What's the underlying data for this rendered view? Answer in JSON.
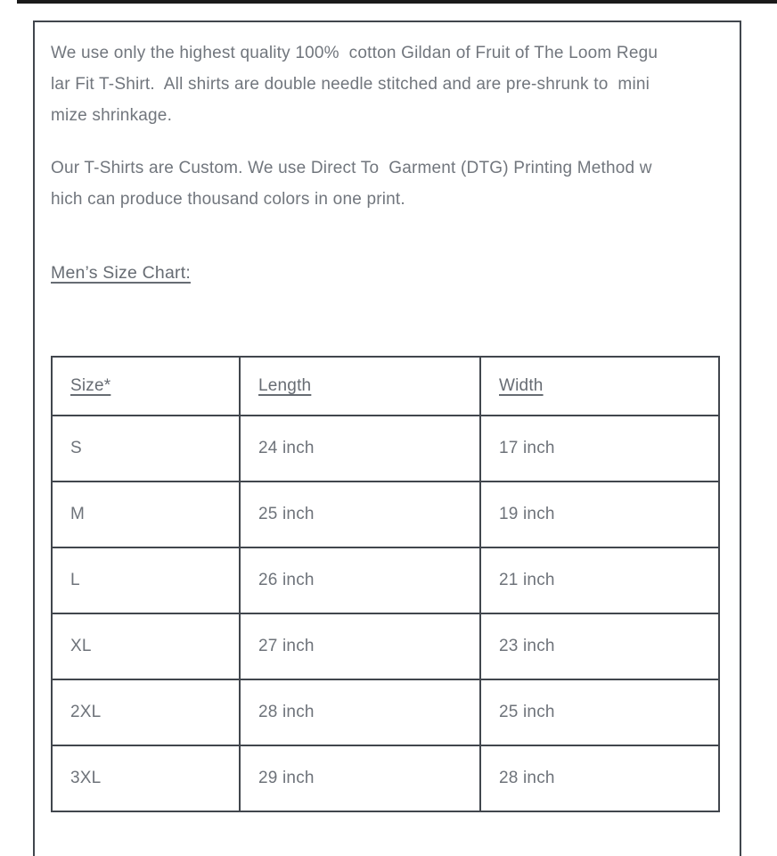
{
  "colors": {
    "top_bar": "#1a1a1a",
    "panel_border": "#41464d",
    "body_text": "#71767d",
    "background": "#ffffff"
  },
  "description": {
    "paragraph1": "We use only the highest quality 100%  cotton Gildan of Fruit of The Loom Regu\nlar Fit T-Shirt.  All shirts are double needle stitched and are pre-shrunk to  mini\nmize shrinkage.",
    "paragraph2": "Our T-Shirts are Custom. We use Direct To  Garment (DTG) Printing Method w\nhich can produce thousand colors in one print.",
    "size_chart_heading": "Men’s Size Chart:"
  },
  "size_chart": {
    "columns": [
      "Size*",
      "Length",
      "Width"
    ],
    "rows": [
      {
        "size": "S",
        "length": "24 inch",
        "width": "17 inch"
      },
      {
        "size": "M",
        "length": "25 inch",
        "width": "19 inch"
      },
      {
        "size": "L",
        "length": "26 inch",
        "width": "21 inch"
      },
      {
        "size": "XL",
        "length": "27 inch",
        "width": "23 inch"
      },
      {
        "size": "2XL",
        "length": "28 inch",
        "width": "25 inch"
      },
      {
        "size": "3XL",
        "length": "29 inch",
        "width": "28 inch"
      }
    ]
  }
}
